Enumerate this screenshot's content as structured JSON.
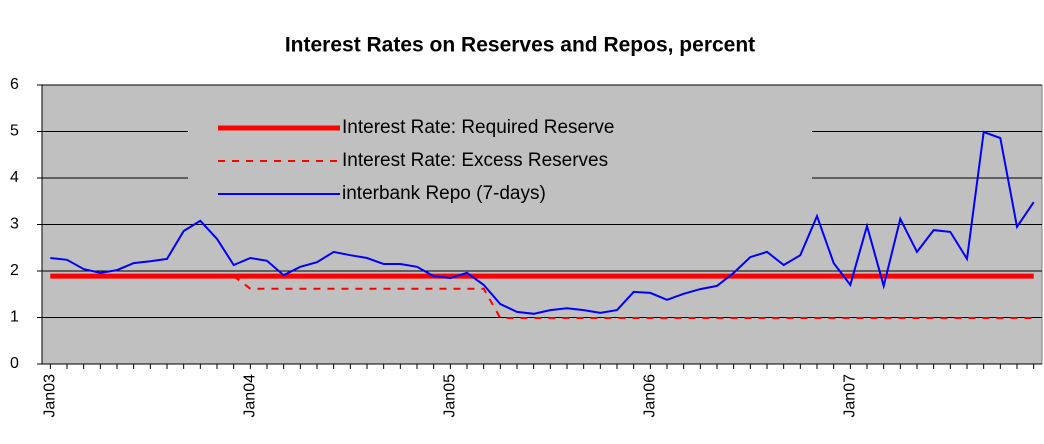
{
  "chart_data": {
    "type": "line",
    "title": "Interest Rates on Reserves and Repos, percent",
    "categories": [
      "Jan03",
      null,
      null,
      null,
      null,
      null,
      null,
      null,
      null,
      null,
      null,
      null,
      "Jan04",
      null,
      null,
      null,
      null,
      null,
      null,
      null,
      null,
      null,
      null,
      null,
      "Jan05",
      null,
      null,
      null,
      null,
      null,
      null,
      null,
      null,
      null,
      null,
      null,
      "Jan06",
      null,
      null,
      null,
      null,
      null,
      null,
      null,
      null,
      null,
      null,
      null,
      "Jan07",
      null,
      null,
      null,
      null,
      null,
      null,
      null,
      null,
      null,
      null,
      null
    ],
    "series": [
      {
        "name": "Interest Rate: Required Reserve",
        "color": "#ff0000",
        "line_style": "solid",
        "line_width": 5,
        "values": [
          1.89,
          1.89,
          1.89,
          1.89,
          1.89,
          1.89,
          1.89,
          1.89,
          1.89,
          1.89,
          1.89,
          1.89,
          1.89,
          1.89,
          1.89,
          1.89,
          1.89,
          1.89,
          1.89,
          1.89,
          1.89,
          1.89,
          1.89,
          1.89,
          1.89,
          1.89,
          1.89,
          1.89,
          1.89,
          1.89,
          1.89,
          1.89,
          1.89,
          1.89,
          1.89,
          1.89,
          1.89,
          1.89,
          1.89,
          1.89,
          1.89,
          1.89,
          1.89,
          1.89,
          1.89,
          1.89,
          1.89,
          1.89,
          1.89,
          1.89,
          1.89,
          1.89,
          1.89,
          1.89,
          1.89,
          1.89,
          1.89,
          1.89,
          1.89,
          1.89
        ]
      },
      {
        "name": "Interest Rate: Excess Reserves",
        "color": "#ff0000",
        "line_style": "dashed",
        "line_width": 2,
        "values": [
          null,
          null,
          null,
          null,
          null,
          null,
          null,
          null,
          null,
          null,
          null,
          1.89,
          1.62,
          1.62,
          1.62,
          1.62,
          1.62,
          1.62,
          1.62,
          1.62,
          1.62,
          1.62,
          1.62,
          1.62,
          1.62,
          1.62,
          1.62,
          0.99,
          0.99,
          0.99,
          0.99,
          0.99,
          0.99,
          0.99,
          0.99,
          0.99,
          0.99,
          0.99,
          0.99,
          0.99,
          0.99,
          0.99,
          0.99,
          0.99,
          0.99,
          0.99,
          0.99,
          0.99,
          0.99,
          0.99,
          0.99,
          0.99,
          0.99,
          0.99,
          0.99,
          0.99,
          0.99,
          0.99,
          0.99,
          0.99
        ]
      },
      {
        "name": "interbank Repo (7-days)",
        "color": "#0000ff",
        "line_style": "solid",
        "line_width": 2,
        "values": [
          2.28,
          2.24,
          2.04,
          1.96,
          2.02,
          2.17,
          2.21,
          2.26,
          2.86,
          3.08,
          2.69,
          2.13,
          2.28,
          2.22,
          1.91,
          2.09,
          2.19,
          2.41,
          2.34,
          2.28,
          2.15,
          2.15,
          2.09,
          1.89,
          1.85,
          1.96,
          1.7,
          1.29,
          1.12,
          1.08,
          1.16,
          1.2,
          1.16,
          1.1,
          1.16,
          1.55,
          1.53,
          1.38,
          1.51,
          1.61,
          1.68,
          1.96,
          2.3,
          2.41,
          2.13,
          2.34,
          3.18,
          2.17,
          1.7,
          2.97,
          1.68,
          3.12,
          2.41,
          2.88,
          2.84,
          2.26,
          4.99,
          4.86,
          2.95,
          3.48
        ]
      }
    ],
    "ylim": [
      0,
      6
    ],
    "yticks": [
      0,
      1,
      2,
      3,
      4,
      5,
      6
    ],
    "grid": true,
    "plot_background": "#c0c0c0",
    "legend_position": "top"
  }
}
